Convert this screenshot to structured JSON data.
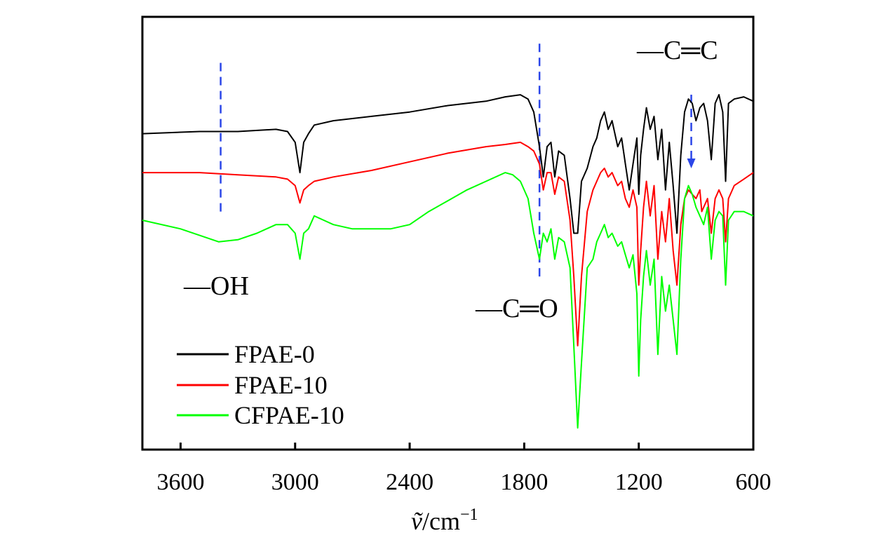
{
  "chart_data": {
    "type": "line",
    "title": "",
    "xlabel": {
      "symbol": "ṽ",
      "unit": "/cm",
      "exponent": "−1"
    },
    "ylabel": "",
    "xlim": [
      3800,
      600
    ],
    "ylim": [
      0,
      100
    ],
    "x_reversed": true,
    "xticks": [
      3600,
      3000,
      2400,
      1800,
      1200,
      600
    ],
    "grid": false,
    "legend": {
      "position": "bottom-left",
      "entries": [
        "FPAE-0",
        "FPAE-10",
        "CFPAE-10"
      ]
    },
    "annotations": [
      {
        "text": "—OH",
        "x": 3390,
        "dashed_line": [
          3390,
          55,
          90
        ]
      },
      {
        "text": "—C═O",
        "x": 1720,
        "dashed_line": [
          1720,
          40,
          95
        ]
      },
      {
        "text": "—C═C",
        "x": 925,
        "arrow": [
          925,
          82,
          65
        ]
      }
    ],
    "series": [
      {
        "name": "FPAE-0",
        "color": "#000000",
        "points": [
          [
            3800,
            73
          ],
          [
            3500,
            73.5
          ],
          [
            3300,
            73.5
          ],
          [
            3100,
            74
          ],
          [
            3040,
            73.5
          ],
          [
            3000,
            71
          ],
          [
            2975,
            64
          ],
          [
            2955,
            71
          ],
          [
            2930,
            73
          ],
          [
            2900,
            75
          ],
          [
            2800,
            76
          ],
          [
            2600,
            77
          ],
          [
            2400,
            78
          ],
          [
            2200,
            79.5
          ],
          [
            2000,
            80.5
          ],
          [
            1900,
            81.5
          ],
          [
            1820,
            82
          ],
          [
            1780,
            81
          ],
          [
            1750,
            78
          ],
          [
            1720,
            70
          ],
          [
            1700,
            63
          ],
          [
            1680,
            70
          ],
          [
            1660,
            71
          ],
          [
            1640,
            63
          ],
          [
            1620,
            69
          ],
          [
            1590,
            68
          ],
          [
            1560,
            58
          ],
          [
            1540,
            50
          ],
          [
            1520,
            50
          ],
          [
            1500,
            62
          ],
          [
            1470,
            65
          ],
          [
            1440,
            70
          ],
          [
            1420,
            72
          ],
          [
            1400,
            76
          ],
          [
            1380,
            78
          ],
          [
            1360,
            74
          ],
          [
            1340,
            76
          ],
          [
            1310,
            70
          ],
          [
            1290,
            72
          ],
          [
            1270,
            66
          ],
          [
            1250,
            60
          ],
          [
            1230,
            66
          ],
          [
            1210,
            72
          ],
          [
            1200,
            59
          ],
          [
            1190,
            68
          ],
          [
            1175,
            74
          ],
          [
            1160,
            79
          ],
          [
            1140,
            74
          ],
          [
            1120,
            77
          ],
          [
            1100,
            67
          ],
          [
            1080,
            74
          ],
          [
            1060,
            60
          ],
          [
            1040,
            71
          ],
          [
            1020,
            61
          ],
          [
            1000,
            50
          ],
          [
            980,
            68
          ],
          [
            960,
            78
          ],
          [
            940,
            81
          ],
          [
            920,
            80
          ],
          [
            900,
            76
          ],
          [
            880,
            79
          ],
          [
            860,
            80
          ],
          [
            840,
            76
          ],
          [
            820,
            67
          ],
          [
            800,
            80
          ],
          [
            780,
            82
          ],
          [
            760,
            78
          ],
          [
            745,
            62
          ],
          [
            730,
            80
          ],
          [
            700,
            81
          ],
          [
            650,
            81.5
          ],
          [
            600,
            80.5
          ]
        ]
      },
      {
        "name": "FPAE-10",
        "color": "#ff0000",
        "points": [
          [
            3800,
            64
          ],
          [
            3500,
            64
          ],
          [
            3300,
            63.5
          ],
          [
            3100,
            63
          ],
          [
            3040,
            62.5
          ],
          [
            3000,
            61
          ],
          [
            2975,
            57
          ],
          [
            2955,
            60
          ],
          [
            2930,
            61
          ],
          [
            2900,
            62
          ],
          [
            2800,
            63
          ],
          [
            2600,
            64.5
          ],
          [
            2400,
            66.5
          ],
          [
            2200,
            68.5
          ],
          [
            2000,
            70
          ],
          [
            1900,
            70.5
          ],
          [
            1820,
            71
          ],
          [
            1780,
            70
          ],
          [
            1750,
            69
          ],
          [
            1720,
            66
          ],
          [
            1700,
            60
          ],
          [
            1680,
            64
          ],
          [
            1660,
            64
          ],
          [
            1640,
            59
          ],
          [
            1620,
            63
          ],
          [
            1590,
            62
          ],
          [
            1560,
            53
          ],
          [
            1540,
            40
          ],
          [
            1520,
            24
          ],
          [
            1500,
            40
          ],
          [
            1470,
            55
          ],
          [
            1440,
            60
          ],
          [
            1420,
            62
          ],
          [
            1400,
            64
          ],
          [
            1380,
            65
          ],
          [
            1360,
            63
          ],
          [
            1340,
            64
          ],
          [
            1310,
            61
          ],
          [
            1290,
            62
          ],
          [
            1270,
            58
          ],
          [
            1250,
            56
          ],
          [
            1230,
            60
          ],
          [
            1210,
            56
          ],
          [
            1200,
            38
          ],
          [
            1190,
            46
          ],
          [
            1175,
            56
          ],
          [
            1160,
            62
          ],
          [
            1140,
            54
          ],
          [
            1120,
            61
          ],
          [
            1100,
            44
          ],
          [
            1080,
            55
          ],
          [
            1060,
            48
          ],
          [
            1040,
            58
          ],
          [
            1020,
            46
          ],
          [
            1000,
            38
          ],
          [
            980,
            52
          ],
          [
            960,
            58
          ],
          [
            940,
            60
          ],
          [
            920,
            59
          ],
          [
            900,
            58
          ],
          [
            880,
            60
          ],
          [
            870,
            55
          ],
          [
            840,
            58
          ],
          [
            820,
            50
          ],
          [
            800,
            58
          ],
          [
            780,
            60
          ],
          [
            760,
            58
          ],
          [
            745,
            48
          ],
          [
            730,
            58
          ],
          [
            700,
            61
          ],
          [
            650,
            62.5
          ],
          [
            600,
            64
          ]
        ]
      },
      {
        "name": "CFPAE-10",
        "color": "#00ff00",
        "points": [
          [
            3800,
            53
          ],
          [
            3600,
            51
          ],
          [
            3400,
            48
          ],
          [
            3300,
            48.5
          ],
          [
            3200,
            50
          ],
          [
            3100,
            52
          ],
          [
            3040,
            52
          ],
          [
            3020,
            51
          ],
          [
            3000,
            50
          ],
          [
            2975,
            44
          ],
          [
            2955,
            50
          ],
          [
            2930,
            51
          ],
          [
            2900,
            54
          ],
          [
            2850,
            53
          ],
          [
            2800,
            52
          ],
          [
            2700,
            51
          ],
          [
            2600,
            51
          ],
          [
            2500,
            51
          ],
          [
            2400,
            52
          ],
          [
            2300,
            55
          ],
          [
            2200,
            57.5
          ],
          [
            2100,
            60
          ],
          [
            2000,
            62
          ],
          [
            1900,
            64
          ],
          [
            1860,
            63.5
          ],
          [
            1820,
            62
          ],
          [
            1780,
            58
          ],
          [
            1750,
            50
          ],
          [
            1720,
            44
          ],
          [
            1700,
            50
          ],
          [
            1680,
            48
          ],
          [
            1660,
            51
          ],
          [
            1640,
            44
          ],
          [
            1620,
            49
          ],
          [
            1590,
            48
          ],
          [
            1560,
            42
          ],
          [
            1540,
            24
          ],
          [
            1520,
            5
          ],
          [
            1500,
            20
          ],
          [
            1470,
            42
          ],
          [
            1440,
            44
          ],
          [
            1420,
            48
          ],
          [
            1400,
            50
          ],
          [
            1380,
            52
          ],
          [
            1360,
            49
          ],
          [
            1340,
            50
          ],
          [
            1310,
            47
          ],
          [
            1290,
            48
          ],
          [
            1270,
            45
          ],
          [
            1250,
            42
          ],
          [
            1230,
            45
          ],
          [
            1210,
            36
          ],
          [
            1200,
            17
          ],
          [
            1190,
            30
          ],
          [
            1175,
            40
          ],
          [
            1160,
            46
          ],
          [
            1140,
            38
          ],
          [
            1120,
            44
          ],
          [
            1100,
            22
          ],
          [
            1080,
            40
          ],
          [
            1060,
            32
          ],
          [
            1040,
            38
          ],
          [
            1020,
            30
          ],
          [
            1000,
            22
          ],
          [
            980,
            44
          ],
          [
            960,
            58
          ],
          [
            940,
            61
          ],
          [
            920,
            59
          ],
          [
            900,
            56
          ],
          [
            880,
            54
          ],
          [
            860,
            52
          ],
          [
            840,
            56
          ],
          [
            820,
            44
          ],
          [
            800,
            53
          ],
          [
            780,
            55
          ],
          [
            760,
            54
          ],
          [
            745,
            38
          ],
          [
            730,
            53
          ],
          [
            700,
            55
          ],
          [
            650,
            55
          ],
          [
            600,
            54
          ]
        ]
      }
    ]
  }
}
